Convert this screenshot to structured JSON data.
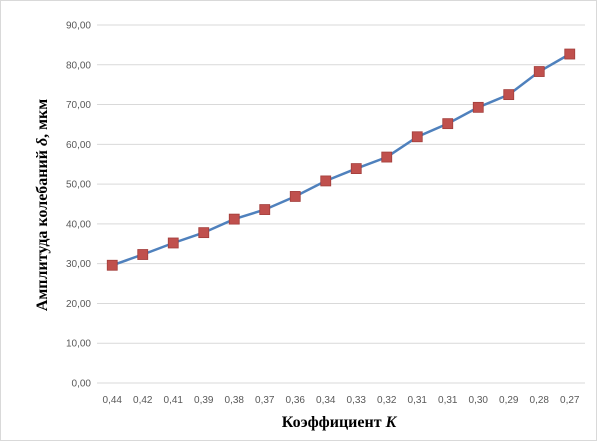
{
  "chart_data": {
    "type": "line",
    "categories": [
      "0,44",
      "0,42",
      "0,41",
      "0,39",
      "0,38",
      "0,37",
      "0,36",
      "0,34",
      "0,33",
      "0,32",
      "0,31",
      "0,31",
      "0,30",
      "0,29",
      "0,28",
      "0,27"
    ],
    "series": [
      {
        "values": [
          29.6,
          32.3,
          35.2,
          37.8,
          41.2,
          43.6,
          46.9,
          50.8,
          53.9,
          56.8,
          61.9,
          65.2,
          69.3,
          72.5,
          78.3,
          82.7
        ]
      }
    ],
    "ylim": [
      0,
      90
    ],
    "yticks": [
      "0,00",
      "10,00",
      "20,00",
      "30,00",
      "40,00",
      "50,00",
      "60,00",
      "70,00",
      "80,00",
      "90,00"
    ],
    "xlabel_prefix": "Коэффициент ",
    "xlabel_symbol": "K",
    "ylabel_prefix": "Амплитуда колебаний ",
    "ylabel_symbol": "δ",
    "ylabel_suffix": ", мкм",
    "grid": {
      "y": true,
      "x": false
    },
    "legend": "none",
    "colors": {
      "line": "#4f81bd",
      "marker": "#c0504d",
      "grid": "#d9d9d9"
    }
  }
}
